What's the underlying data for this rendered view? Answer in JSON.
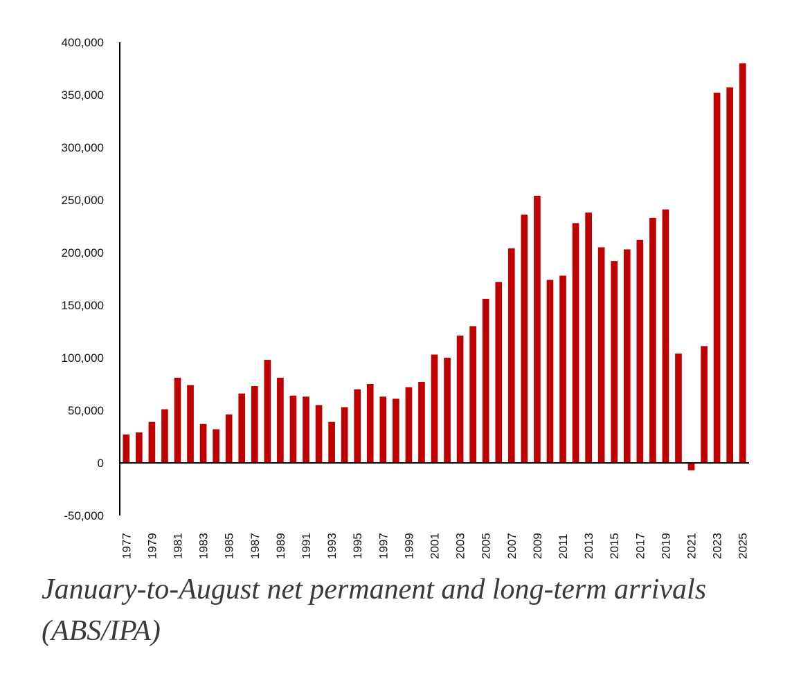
{
  "chart_data": {
    "type": "bar",
    "title": "January-to-August net permanent and long-term arrivals (ABS/IPA)",
    "xlabel": "",
    "ylabel": "",
    "ylim": [
      -50000,
      400000
    ],
    "yticks": [
      400000,
      350000,
      300000,
      250000,
      200000,
      150000,
      100000,
      50000,
      0,
      -50000
    ],
    "ytick_labels": [
      "400,000",
      "350,000",
      "300,000",
      "250,000",
      "200,000",
      "150,000",
      "100,000",
      "50,000",
      "0",
      "-50,000"
    ],
    "categories": [
      "1977",
      "1978",
      "1979",
      "1980",
      "1981",
      "1982",
      "1983",
      "1984",
      "1985",
      "1986",
      "1987",
      "1988",
      "1989",
      "1990",
      "1991",
      "1992",
      "1993",
      "1994",
      "1995",
      "1996",
      "1997",
      "1998",
      "1999",
      "2000",
      "2001",
      "2002",
      "2003",
      "2004",
      "2005",
      "2006",
      "2007",
      "2008",
      "2009",
      "2010",
      "2011",
      "2012",
      "2013",
      "2014",
      "2015",
      "2016",
      "2017",
      "2018",
      "2019",
      "2020",
      "2021",
      "2022",
      "2023",
      "2024",
      "2025"
    ],
    "xtick_labels": [
      "1977",
      "1979",
      "1981",
      "1983",
      "1985",
      "1987",
      "1989",
      "1991",
      "1993",
      "1995",
      "1997",
      "1999",
      "2001",
      "2003",
      "2005",
      "2007",
      "2009",
      "2011",
      "2013",
      "2015",
      "2017",
      "2019",
      "2021",
      "2023",
      "2025"
    ],
    "values": [
      27000,
      29000,
      39000,
      51000,
      81000,
      74000,
      37000,
      32000,
      46000,
      66000,
      73000,
      98000,
      81000,
      64000,
      63000,
      55000,
      39000,
      53000,
      70000,
      75000,
      63000,
      61000,
      72000,
      77000,
      103000,
      100000,
      121000,
      130000,
      156000,
      172000,
      204000,
      236000,
      254000,
      174000,
      178000,
      228000,
      238000,
      205000,
      192000,
      203000,
      212000,
      233000,
      241000,
      104000,
      -7000,
      111000,
      352000,
      357000,
      380000
    ],
    "bar_color": "#c00000",
    "axis_color": "#000000",
    "grid": false,
    "legend": "none"
  }
}
